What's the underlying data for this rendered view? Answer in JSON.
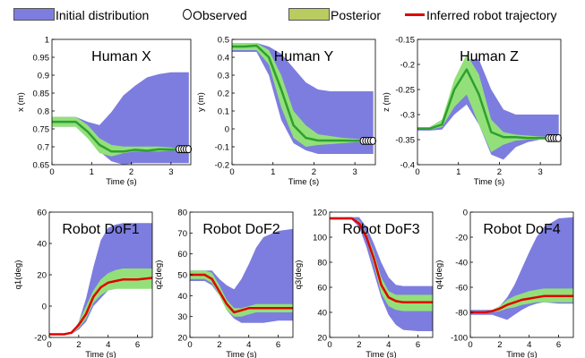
{
  "legend": {
    "initial": "Initial distribution",
    "observed": "Observed",
    "posterior": "Posterior",
    "inferred": "Inferred robot trajectory"
  },
  "colors": {
    "initial": "#7d7ddf",
    "posterior": "#93e07a",
    "posterior_mean": "#2ea02e",
    "trajectory": "#e00000",
    "observed": "#000000"
  },
  "chart_data": [
    {
      "type": "area",
      "title": "Human X",
      "xlabel": "Time (s)",
      "ylabel": "x (m)",
      "xlim": [
        0,
        3.5
      ],
      "ylim": [
        0.62,
        1.0
      ],
      "xticks": [
        "0",
        "1",
        "2",
        "3"
      ],
      "yticks": [
        "0.65",
        "0.7",
        "0.75",
        "0.8",
        "0.85",
        "0.9",
        "0.95",
        "1"
      ],
      "x": [
        0,
        0.3,
        0.6,
        0.9,
        1.2,
        1.5,
        1.8,
        2.1,
        2.4,
        2.7,
        3.0,
        3.2,
        3.45
      ],
      "initial_upper": [
        0.765,
        0.765,
        0.765,
        0.75,
        0.74,
        0.78,
        0.83,
        0.86,
        0.885,
        0.895,
        0.9,
        0.9,
        0.9
      ],
      "initial_lower": [
        0.735,
        0.735,
        0.735,
        0.7,
        0.66,
        0.63,
        0.62,
        0.625,
        0.625,
        0.625,
        0.625,
        0.625,
        0.625
      ],
      "posterior_upper": [
        0.765,
        0.765,
        0.765,
        0.74,
        0.7,
        0.68,
        0.675,
        0.675,
        0.675,
        0.675,
        0.672,
        0.67,
        0.67
      ],
      "posterior_lower": [
        0.735,
        0.735,
        0.735,
        0.7,
        0.655,
        0.645,
        0.655,
        0.66,
        0.66,
        0.66,
        0.663,
        0.665,
        0.665
      ],
      "posterior_mean": [
        0.75,
        0.75,
        0.75,
        0.72,
        0.68,
        0.66,
        0.66,
        0.665,
        0.662,
        0.667,
        0.666,
        0.667,
        0.667
      ],
      "observed_x": [
        3.2,
        3.26,
        3.32,
        3.38,
        3.44
      ],
      "observed_y": [
        0.667,
        0.667,
        0.667,
        0.667,
        0.667
      ]
    },
    {
      "type": "area",
      "title": "Human Y",
      "xlabel": "Time (s)",
      "ylabel": "y (m)",
      "xlim": [
        0,
        3.5
      ],
      "ylim": [
        -0.2,
        0.5
      ],
      "xticks": [
        "0",
        "1",
        "2",
        "3"
      ],
      "yticks": [
        "-0.2",
        "-0.1",
        "0",
        "0.1",
        "0.2",
        "0.3",
        "0.4",
        "0.5"
      ],
      "x": [
        0,
        0.3,
        0.6,
        0.9,
        1.2,
        1.5,
        1.8,
        2.1,
        2.4,
        2.7,
        3.0,
        3.2,
        3.45
      ],
      "initial_upper": [
        0.48,
        0.48,
        0.48,
        0.46,
        0.42,
        0.34,
        0.26,
        0.22,
        0.21,
        0.21,
        0.21,
        0.21,
        0.21
      ],
      "initial_lower": [
        0.43,
        0.43,
        0.43,
        0.3,
        0.05,
        -0.08,
        -0.12,
        -0.14,
        -0.14,
        -0.14,
        -0.14,
        -0.14,
        -0.14
      ],
      "posterior_upper": [
        0.48,
        0.48,
        0.48,
        0.44,
        0.3,
        0.1,
        0.02,
        -0.03,
        -0.04,
        -0.05,
        -0.055,
        -0.06,
        -0.06
      ],
      "posterior_lower": [
        0.44,
        0.44,
        0.44,
        0.36,
        0.12,
        -0.05,
        -0.1,
        -0.09,
        -0.085,
        -0.08,
        -0.075,
        -0.075,
        -0.075
      ],
      "posterior_mean": [
        0.46,
        0.46,
        0.465,
        0.4,
        0.22,
        0.02,
        -0.05,
        -0.065,
        -0.065,
        -0.065,
        -0.066,
        -0.067,
        -0.067
      ],
      "observed_x": [
        3.2,
        3.26,
        3.32,
        3.38,
        3.44
      ],
      "observed_y": [
        -0.067,
        -0.067,
        -0.067,
        -0.067,
        -0.067
      ]
    },
    {
      "type": "area",
      "title": "Human Z",
      "xlabel": "Time (s)",
      "ylabel": "z (m)",
      "xlim": [
        0,
        3.5
      ],
      "ylim": [
        -0.4,
        -0.15
      ],
      "xticks": [
        "0",
        "1",
        "2",
        "3"
      ],
      "yticks": [
        "-0.4",
        "-0.35",
        "-0.3",
        "-0.25",
        "-0.2",
        "-0.15"
      ],
      "x": [
        0,
        0.3,
        0.6,
        0.9,
        1.2,
        1.5,
        1.8,
        2.1,
        2.4,
        2.7,
        3.0,
        3.2,
        3.45
      ],
      "initial_upper": [
        -0.325,
        -0.325,
        -0.31,
        -0.24,
        -0.19,
        -0.19,
        -0.25,
        -0.29,
        -0.3,
        -0.3,
        -0.3,
        -0.3,
        -0.3
      ],
      "initial_lower": [
        -0.332,
        -0.332,
        -0.33,
        -0.3,
        -0.28,
        -0.32,
        -0.38,
        -0.39,
        -0.365,
        -0.355,
        -0.35,
        -0.35,
        -0.35
      ],
      "posterior_upper": [
        -0.325,
        -0.325,
        -0.31,
        -0.23,
        -0.18,
        -0.22,
        -0.31,
        -0.335,
        -0.34,
        -0.342,
        -0.344,
        -0.344,
        -0.344
      ],
      "posterior_lower": [
        -0.33,
        -0.33,
        -0.325,
        -0.285,
        -0.26,
        -0.32,
        -0.375,
        -0.36,
        -0.352,
        -0.35,
        -0.35,
        -0.35,
        -0.35
      ],
      "posterior_mean": [
        -0.328,
        -0.328,
        -0.32,
        -0.25,
        -0.21,
        -0.26,
        -0.335,
        -0.345,
        -0.345,
        -0.347,
        -0.347,
        -0.347,
        -0.347
      ],
      "observed_x": [
        3.2,
        3.26,
        3.32,
        3.38,
        3.44
      ],
      "observed_y": [
        -0.347,
        -0.347,
        -0.347,
        -0.347,
        -0.347
      ]
    },
    {
      "type": "area",
      "title": "Robot DoF1",
      "xlabel": "Time (s)",
      "ylabel": "q1(deg)",
      "xlim": [
        0,
        7
      ],
      "ylim": [
        -20,
        60
      ],
      "xticks": [
        "0",
        "2",
        "4",
        "6"
      ],
      "yticks": [
        "-20",
        "0",
        "20",
        "40",
        "60"
      ],
      "x": [
        0,
        1,
        1.5,
        2,
        2.5,
        3,
        3.5,
        4,
        4.5,
        5,
        6,
        7
      ],
      "initial_upper": [
        -18,
        -18,
        -18,
        -10,
        5,
        25,
        42,
        50,
        52,
        53,
        53,
        53
      ],
      "initial_lower": [
        -18,
        -18,
        -18,
        -15,
        -10,
        0,
        5,
        10,
        11,
        12,
        12,
        12
      ],
      "posterior_upper": [
        -18,
        -18,
        -18,
        -10,
        0,
        10,
        17,
        21,
        23,
        24,
        24,
        24
      ],
      "posterior_lower": [
        -18,
        -18,
        -18,
        -14,
        -8,
        2,
        7,
        10,
        11,
        11,
        11,
        11
      ],
      "trajectory": [
        -18,
        -18,
        -17,
        -12,
        -5,
        6,
        12,
        15,
        16,
        17,
        17,
        18
      ]
    },
    {
      "type": "area",
      "title": "Robot DoF2",
      "xlabel": "Time (s)",
      "ylabel": "q2(deg)",
      "xlim": [
        0,
        7
      ],
      "ylim": [
        20,
        80
      ],
      "xticks": [
        "0",
        "2",
        "4",
        "6"
      ],
      "yticks": [
        "20",
        "30",
        "40",
        "50",
        "60",
        "70",
        "80"
      ],
      "x": [
        0,
        1,
        1.5,
        2,
        2.5,
        3,
        3.5,
        4,
        4.5,
        5,
        6,
        7
      ],
      "initial_upper": [
        52,
        52,
        52,
        48,
        45,
        43,
        48,
        55,
        63,
        68,
        71,
        72
      ],
      "initial_lower": [
        47,
        47,
        45,
        40,
        33,
        29,
        27,
        27,
        27,
        27,
        28,
        28
      ],
      "posterior_upper": [
        52,
        52,
        51,
        45,
        38,
        34,
        34,
        35,
        36,
        36,
        36,
        36
      ],
      "posterior_lower": [
        48,
        48,
        46,
        40,
        33,
        30,
        30,
        31,
        32,
        32,
        32,
        32
      ],
      "trajectory": [
        50,
        50,
        48,
        42,
        36,
        32,
        33,
        34,
        34,
        34,
        34,
        34
      ]
    },
    {
      "type": "area",
      "title": "Robot DoF3",
      "xlabel": "Time (s)",
      "ylabel": "q3(deg)",
      "xlim": [
        0,
        7
      ],
      "ylim": [
        20,
        120
      ],
      "xticks": [
        "0",
        "2",
        "4",
        "6"
      ],
      "yticks": [
        "20",
        "40",
        "60",
        "80",
        "100",
        "120"
      ],
      "x": [
        0,
        1,
        1.5,
        2,
        2.5,
        3,
        3.5,
        4,
        4.5,
        5,
        6,
        7
      ],
      "initial_upper": [
        116,
        116,
        116,
        116,
        108,
        95,
        80,
        68,
        62,
        61,
        61,
        61
      ],
      "initial_lower": [
        114,
        114,
        114,
        108,
        92,
        72,
        52,
        38,
        30,
        26,
        25,
        25
      ],
      "posterior_upper": [
        116,
        116,
        115,
        113,
        103,
        88,
        68,
        57,
        54,
        54,
        54,
        54
      ],
      "posterior_lower": [
        114,
        114,
        114,
        110,
        98,
        78,
        55,
        45,
        42,
        41,
        41,
        41
      ],
      "trajectory": [
        115,
        115,
        115,
        111,
        100,
        83,
        62,
        52,
        49,
        48,
        48,
        48
      ]
    },
    {
      "type": "area",
      "title": "Robot DoF4",
      "xlabel": "Time (s)",
      "ylabel": "q4(deg)",
      "xlim": [
        0,
        7
      ],
      "ylim": [
        -100,
        0
      ],
      "xticks": [
        "0",
        "2",
        "4",
        "6"
      ],
      "yticks": [
        "-100",
        "-80",
        "-60",
        "-40",
        "-20",
        "0"
      ],
      "x": [
        0,
        1,
        1.5,
        2,
        2.5,
        3,
        3.5,
        4,
        4.5,
        5,
        6,
        7
      ],
      "initial_upper": [
        -78,
        -78,
        -78,
        -75,
        -68,
        -58,
        -45,
        -32,
        -20,
        -12,
        -5,
        -4
      ],
      "initial_lower": [
        -82,
        -82,
        -82,
        -84,
        -86,
        -82,
        -78,
        -75,
        -73,
        -72,
        -73,
        -73
      ],
      "posterior_upper": [
        -79,
        -79,
        -78,
        -75,
        -70,
        -67,
        -65,
        -63,
        -62,
        -61,
        -61,
        -61
      ],
      "posterior_lower": [
        -81,
        -81,
        -80,
        -79,
        -77,
        -76,
        -74,
        -73,
        -72,
        -72,
        -72,
        -72
      ],
      "trajectory": [
        -80,
        -80,
        -79,
        -77,
        -74,
        -72,
        -70,
        -69,
        -68,
        -67,
        -67,
        -67
      ]
    }
  ]
}
